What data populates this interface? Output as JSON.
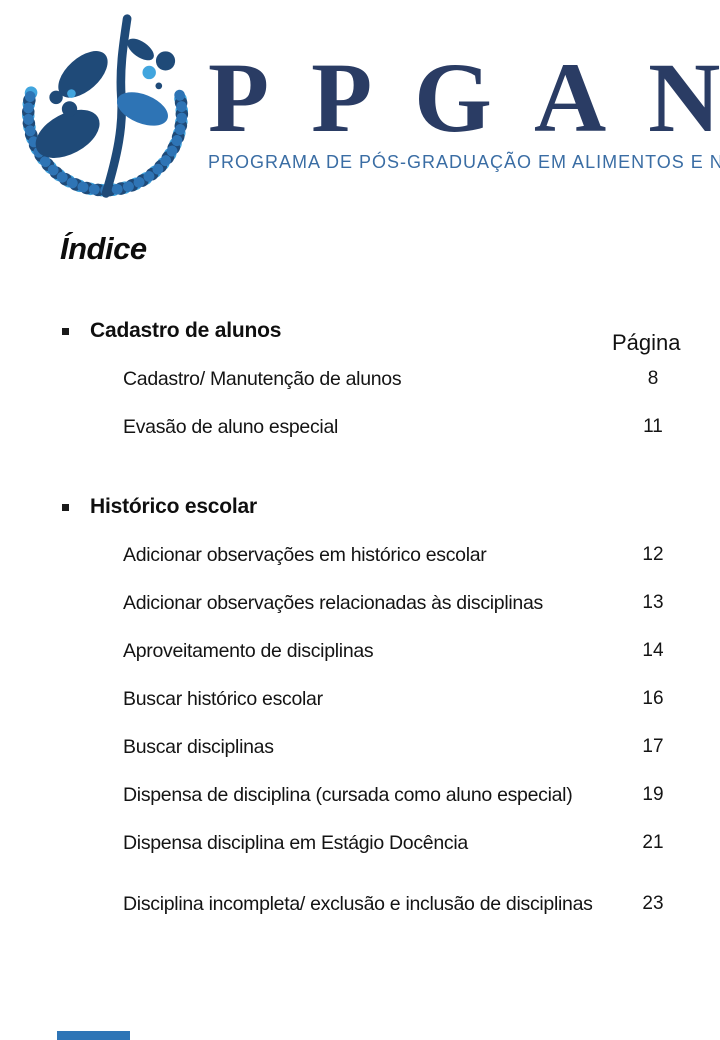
{
  "logo": {
    "acronym": "PPGAN",
    "subtitle": "PROGRAMA DE PÓS-GRADUAÇÃO EM ALIMENTOS E NUTRIÇÃO",
    "mark": "plant-and-dna-wreath-icon",
    "colors": {
      "acronym_navy": "#2a3c64",
      "subtitle_blue": "#3a6da4",
      "leaf_navy": "#1f4a78",
      "leaf_mid_blue": "#2e74b5",
      "dna_light_blue": "#41a5de",
      "footer_bar_blue": "#2e75b6"
    }
  },
  "title": "Índice",
  "page_column_header": "Página",
  "toc": {
    "sections": [
      {
        "label": "Cadastro de alunos",
        "items": [
          {
            "label": "Cadastro/ Manutenção de alunos",
            "page": "8"
          },
          {
            "label": "Evasão de aluno especial",
            "page": "11"
          }
        ]
      },
      {
        "label": "Histórico escolar",
        "items": [
          {
            "label": "Adicionar observações em histórico escolar",
            "page": "12"
          },
          {
            "label": "Adicionar observações relacionadas às disciplinas",
            "page": "13"
          },
          {
            "label": "Aproveitamento de disciplinas",
            "page": "14"
          },
          {
            "label": "Buscar histórico escolar",
            "page": "16"
          },
          {
            "label": "Buscar disciplinas",
            "page": "17"
          },
          {
            "label": "Dispensa de disciplina (cursada como aluno especial)",
            "page": "19"
          },
          {
            "label": "Dispensa disciplina em Estágio Docência",
            "page": "21"
          },
          {
            "label": "Disciplina incompleta/ exclusão e inclusão de disciplinas",
            "page": "23"
          }
        ]
      }
    ]
  }
}
